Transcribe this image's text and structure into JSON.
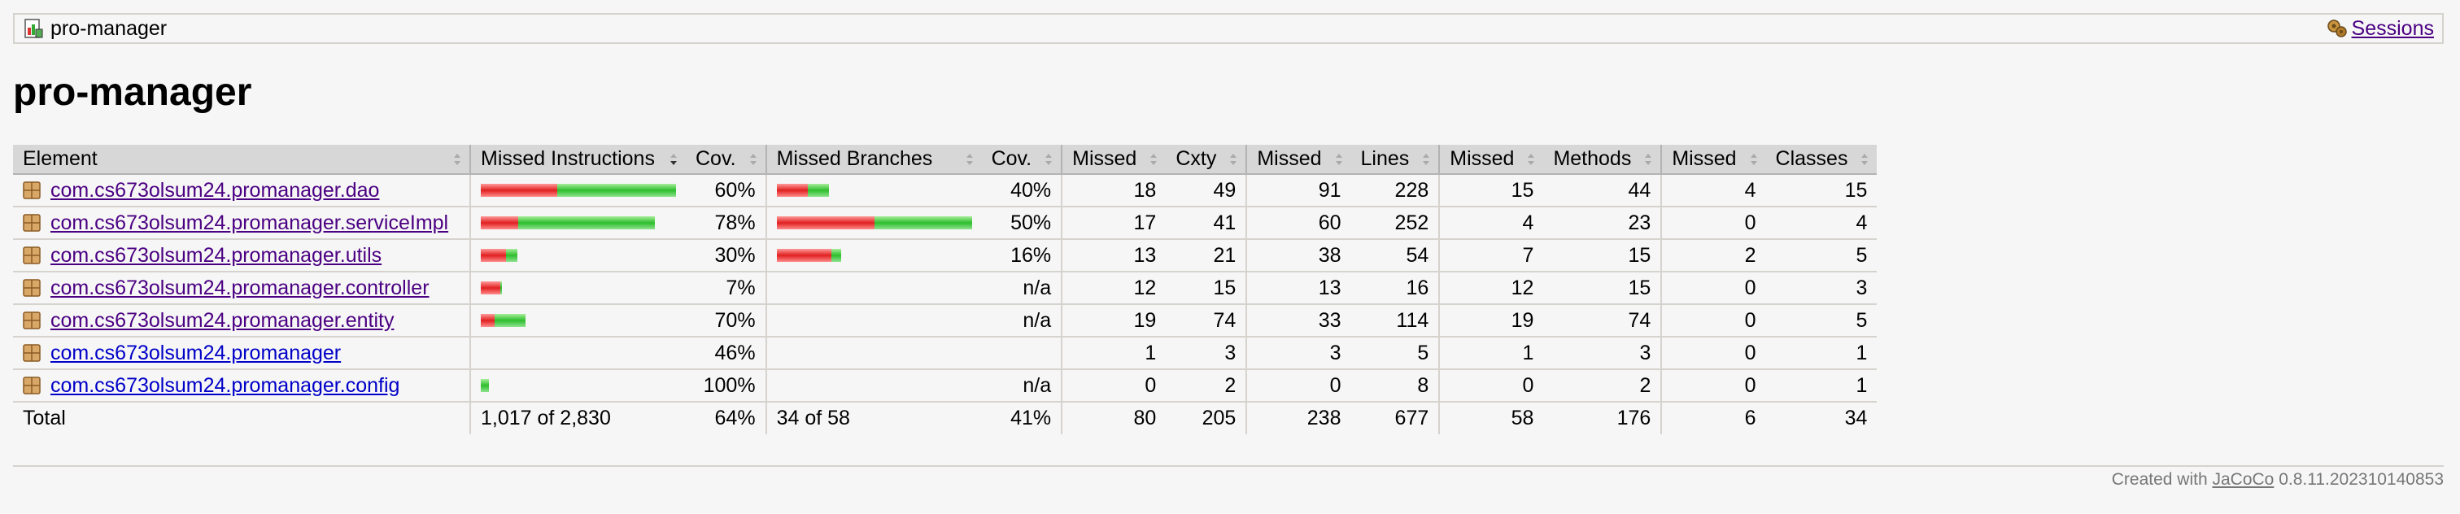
{
  "breadcrumb": {
    "title": "pro-manager",
    "sessions_label": "Sessions"
  },
  "page": {
    "title": "pro-manager"
  },
  "table": {
    "headers": {
      "element": "Element",
      "missed_instructions": "Missed Instructions",
      "cov_instructions": "Cov.",
      "missed_branches": "Missed Branches",
      "cov_branches": "Cov.",
      "missed_cxty": "Missed",
      "cxty": "Cxty",
      "missed_lines": "Missed",
      "lines": "Lines",
      "missed_methods": "Missed",
      "methods": "Methods",
      "missed_classes": "Missed",
      "classes": "Classes"
    },
    "rows": [
      {
        "name": "com.cs673olsum24.promanager.dao",
        "visited": true,
        "instr_red": 0.39,
        "instr_green": 0.61,
        "instr_cov": "60%",
        "br_red": 0.16,
        "br_green": 0.11,
        "br_cov": "40%",
        "missed_cxty": "18",
        "cxty": "49",
        "missed_lines": "91",
        "lines": "228",
        "missed_methods": "15",
        "methods": "44",
        "missed_classes": "4",
        "classes": "15"
      },
      {
        "name": "com.cs673olsum24.promanager.serviceImpl",
        "visited": true,
        "instr_red": 0.19,
        "instr_green": 0.7,
        "instr_cov": "78%",
        "br_red": 0.5,
        "br_green": 0.5,
        "br_cov": "50%",
        "missed_cxty": "17",
        "cxty": "41",
        "missed_lines": "60",
        "lines": "252",
        "missed_methods": "4",
        "methods": "23",
        "missed_classes": "0",
        "classes": "4"
      },
      {
        "name": "com.cs673olsum24.promanager.utils",
        "visited": true,
        "instr_red": 0.13,
        "instr_green": 0.06,
        "instr_cov": "30%",
        "br_red": 0.28,
        "br_green": 0.05,
        "br_cov": "16%",
        "missed_cxty": "13",
        "cxty": "21",
        "missed_lines": "38",
        "lines": "54",
        "missed_methods": "7",
        "methods": "15",
        "missed_classes": "2",
        "classes": "5"
      },
      {
        "name": "com.cs673olsum24.promanager.controller",
        "visited": true,
        "instr_red": 0.1,
        "instr_green": 0.008,
        "instr_cov": "7%",
        "br_red": 0,
        "br_green": 0,
        "br_cov": "n/a",
        "missed_cxty": "12",
        "cxty": "15",
        "missed_lines": "13",
        "lines": "16",
        "missed_methods": "12",
        "methods": "15",
        "missed_classes": "0",
        "classes": "3"
      },
      {
        "name": "com.cs673olsum24.promanager.entity",
        "visited": true,
        "instr_red": 0.07,
        "instr_green": 0.16,
        "instr_cov": "70%",
        "br_red": 0,
        "br_green": 0,
        "br_cov": "n/a",
        "missed_cxty": "19",
        "cxty": "74",
        "missed_lines": "33",
        "lines": "114",
        "missed_methods": "19",
        "methods": "74",
        "missed_classes": "0",
        "classes": "5"
      },
      {
        "name": "com.cs673olsum24.promanager",
        "visited": false,
        "instr_red": 0,
        "instr_green": 0,
        "instr_cov": "46%",
        "br_red": 0,
        "br_green": 0,
        "br_cov": "",
        "missed_cxty": "1",
        "cxty": "3",
        "missed_lines": "3",
        "lines": "5",
        "missed_methods": "1",
        "methods": "3",
        "missed_classes": "0",
        "classes": "1"
      },
      {
        "name": "com.cs673olsum24.promanager.config",
        "visited": false,
        "instr_red": 0,
        "instr_green": 0.04,
        "instr_cov": "100%",
        "br_red": 0,
        "br_green": 0,
        "br_cov": "n/a",
        "missed_cxty": "0",
        "cxty": "2",
        "missed_lines": "0",
        "lines": "8",
        "missed_methods": "0",
        "methods": "2",
        "missed_classes": "0",
        "classes": "1"
      }
    ],
    "total": {
      "label": "Total",
      "missed_instructions": "1,017 of 2,830",
      "instr_cov": "64%",
      "missed_branches": "34 of 58",
      "br_cov": "41%",
      "missed_cxty": "80",
      "cxty": "205",
      "missed_lines": "238",
      "lines": "677",
      "missed_methods": "58",
      "methods": "176",
      "missed_classes": "6",
      "classes": "34"
    }
  },
  "footer": {
    "prefix": "Created with",
    "link": "JaCoCo",
    "version": "0.8.11.202310140853"
  },
  "colors": {
    "missed": "#e02020",
    "covered": "#2ebe2e",
    "link_visited": "#4b0082",
    "link": "#0000c8"
  }
}
